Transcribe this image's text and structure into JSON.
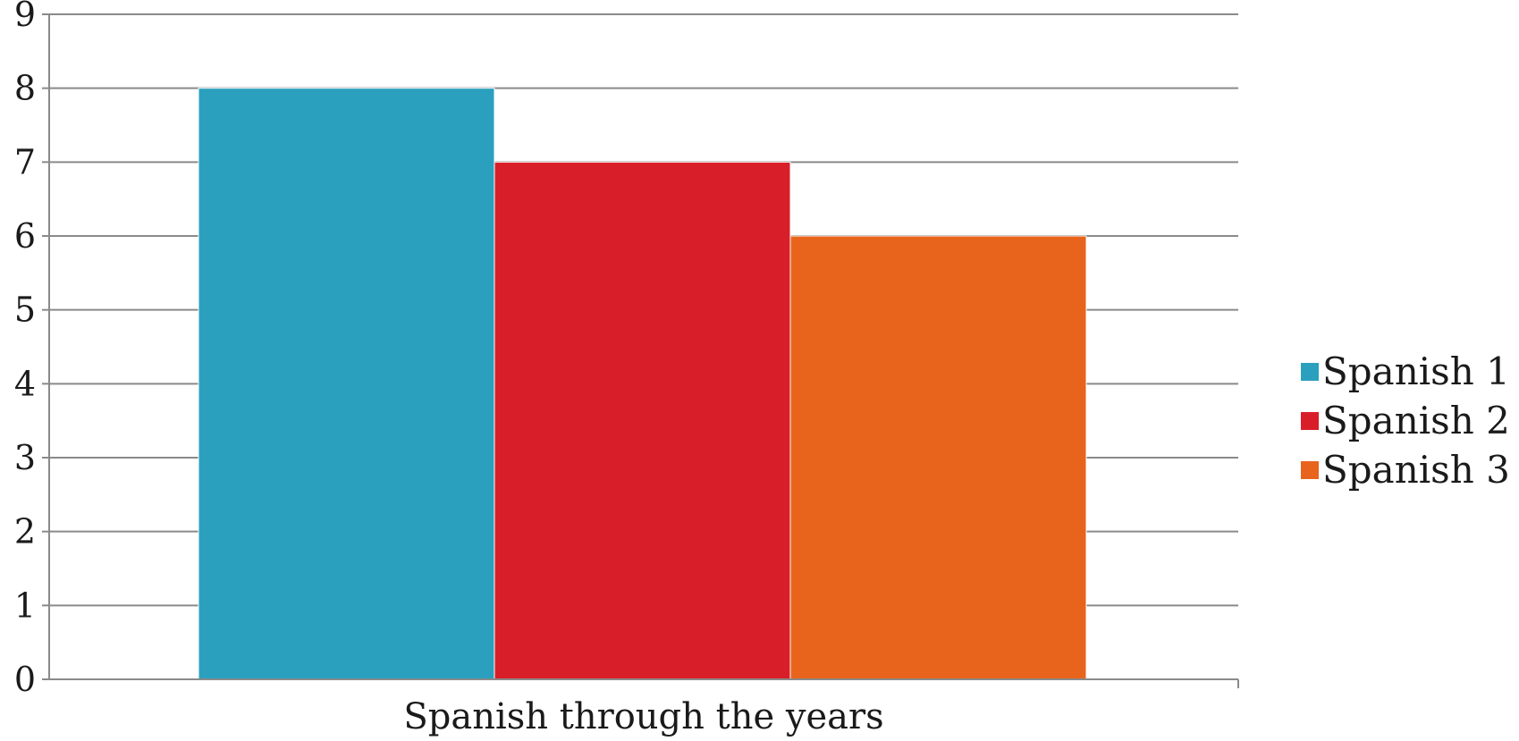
{
  "chart_data": {
    "type": "bar",
    "title": "",
    "xlabel": "",
    "ylabel": "",
    "categories": [
      "Spanish through the years"
    ],
    "series": [
      {
        "name": "Spanish 1",
        "values": [
          8
        ],
        "color": "#2ba0be"
      },
      {
        "name": "Spanish 2",
        "values": [
          7
        ],
        "color": "#d81f29"
      },
      {
        "name": "Spanish 3",
        "values": [
          6
        ],
        "color": "#e8641d"
      }
    ],
    "ylim": [
      0,
      9
    ],
    "yticks": [
      0,
      1,
      2,
      3,
      4,
      5,
      6,
      7,
      8,
      9
    ],
    "grid": true,
    "legend_position": "right"
  }
}
